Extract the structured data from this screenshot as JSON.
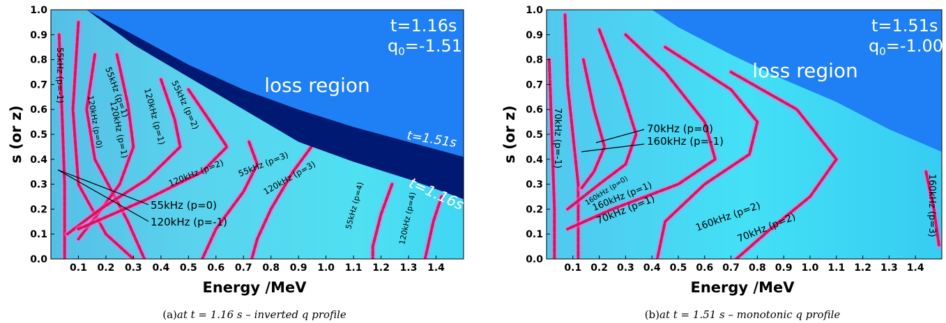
{
  "chart_data": [
    {
      "type": "heatmap",
      "panel_label": "(a)",
      "caption": "at t = 1.16 s – inverted q profile",
      "xlabel": "Energy   /MeV",
      "ylabel": "s (or z)",
      "xlim": [
        0,
        1.5
      ],
      "ylim": [
        0,
        1.0
      ],
      "xticks": [
        "0.1",
        "0.2",
        "0.3",
        "0.4",
        "0.5",
        "0.6",
        "0.7",
        "0.8",
        "0.9",
        "1.0",
        "1.1",
        "1.2",
        "1.3",
        "1.4"
      ],
      "yticks": [
        "0.0",
        "0.1",
        "0.2",
        "0.3",
        "0.4",
        "0.5",
        "0.6",
        "0.7",
        "0.8",
        "0.9",
        "1.0"
      ],
      "time_label": "t=1.16s",
      "q0_label": "q",
      "q0_sub": "0",
      "q0_value": "=-1.51",
      "region_label": "loss region",
      "boundary_labels": [
        "t=1.51s",
        "t=1.16s"
      ],
      "boundary_t151": [
        [
          0.13,
          1.0
        ],
        [
          0.3,
          0.9
        ],
        [
          0.5,
          0.78
        ],
        [
          0.7,
          0.68
        ],
        [
          0.9,
          0.6
        ],
        [
          1.1,
          0.53
        ],
        [
          1.3,
          0.47
        ],
        [
          1.5,
          0.41
        ]
      ],
      "boundary_t116": [
        [
          0.13,
          1.0
        ],
        [
          0.3,
          0.86
        ],
        [
          0.5,
          0.73
        ],
        [
          0.7,
          0.6
        ],
        [
          0.9,
          0.47
        ],
        [
          1.1,
          0.39
        ],
        [
          1.3,
          0.32
        ],
        [
          1.5,
          0.24
        ]
      ],
      "resonance_labels": [
        "55kHz (p=-1)",
        "55kHz (p=1)",
        "120kHz (p=0)",
        "120kHz (p=1)",
        "55kHz (p=2)",
        "120kHz (p=1)",
        "120kHz (p=2)",
        "55kHz (p=3)",
        "120kHz (p=3)",
        "55kHz (p=4)",
        "120kHz (p=4)",
        "55kHz (p=0)",
        "120kHz (p=-1)"
      ],
      "resonances": [
        {
          "points": [
            [
              0.03,
              0.9
            ],
            [
              0.04,
              0.6
            ],
            [
              0.05,
              0.3
            ],
            [
              0.05,
              0.0
            ]
          ]
        },
        {
          "points": [
            [
              0.1,
              0.95
            ],
            [
              0.08,
              0.6
            ],
            [
              0.1,
              0.3
            ],
            [
              0.2,
              0.1
            ],
            [
              0.3,
              0.0
            ]
          ]
        },
        {
          "points": [
            [
              0.16,
              0.82
            ],
            [
              0.13,
              0.6
            ],
            [
              0.16,
              0.4
            ],
            [
              0.28,
              0.15
            ],
            [
              0.34,
              0.0
            ]
          ]
        },
        {
          "points": [
            [
              0.24,
              0.82
            ],
            [
              0.28,
              0.62
            ],
            [
              0.3,
              0.45
            ],
            [
              0.25,
              0.3
            ],
            [
              0.17,
              0.18
            ],
            [
              0.1,
              0.08
            ]
          ]
        },
        {
          "points": [
            [
              0.4,
              0.72
            ],
            [
              0.45,
              0.56
            ],
            [
              0.47,
              0.45
            ],
            [
              0.35,
              0.32
            ],
            [
              0.18,
              0.2
            ],
            [
              0.06,
              0.1
            ]
          ]
        },
        {
          "points": [
            [
              0.5,
              0.68
            ],
            [
              0.58,
              0.55
            ],
            [
              0.64,
              0.45
            ],
            [
              0.55,
              0.35
            ],
            [
              0.35,
              0.24
            ],
            [
              0.1,
              0.12
            ]
          ]
        },
        {
          "points": [
            [
              0.72,
              0.47
            ],
            [
              0.75,
              0.38
            ],
            [
              0.7,
              0.27
            ],
            [
              0.6,
              0.12
            ],
            [
              0.55,
              0.0
            ]
          ]
        },
        {
          "points": [
            [
              0.96,
              0.47
            ],
            [
              0.88,
              0.35
            ],
            [
              0.8,
              0.2
            ],
            [
              0.75,
              0.08
            ],
            [
              0.73,
              0.0
            ]
          ]
        },
        {
          "points": [
            [
              1.24,
              0.3
            ],
            [
              1.2,
              0.18
            ],
            [
              1.17,
              0.05
            ],
            [
              1.17,
              0.0
            ]
          ]
        },
        {
          "points": [
            [
              1.42,
              0.25
            ],
            [
              1.39,
              0.15
            ],
            [
              1.37,
              0.05
            ],
            [
              1.36,
              0.0
            ]
          ]
        }
      ]
    },
    {
      "type": "heatmap",
      "panel_label": "(b)",
      "caption": "at t = 1.51 s – monotonic q profile",
      "xlabel": "Energy   /MeV",
      "ylabel": "s (or z)",
      "xlim": [
        0,
        1.5
      ],
      "ylim": [
        0,
        1.0
      ],
      "xticks": [
        "0.1",
        "0.2",
        "0.3",
        "0.4",
        "0.5",
        "0.6",
        "0.7",
        "0.8",
        "0.9",
        "1.0",
        "1.1",
        "1.2",
        "1.3",
        "1.4"
      ],
      "yticks": [
        "0.0",
        "0.1",
        "0.2",
        "0.3",
        "0.4",
        "0.5",
        "0.6",
        "0.7",
        "0.8",
        "0.9",
        "1.0"
      ],
      "time_label": "t=1.51s",
      "q0_label": "q",
      "q0_sub": "0",
      "q0_value": "=-1.00",
      "region_label": "loss region",
      "boundary": [
        [
          0.4,
          1.0
        ],
        [
          0.5,
          0.93
        ],
        [
          0.7,
          0.82
        ],
        [
          0.9,
          0.72
        ],
        [
          1.1,
          0.63
        ],
        [
          1.3,
          0.52
        ],
        [
          1.5,
          0.43
        ]
      ],
      "resonance_labels": [
        "70kHz (p=-1)",
        "70kHz (p=0)",
        "160kHz (p=-1)",
        "160kHz (p=0)",
        "160kHz (p=1)",
        "70kHz (p=1)",
        "160kHz (p=2)",
        "70kHz (p=2)",
        "160kHz (p=3)"
      ],
      "resonances": [
        {
          "points": [
            [
              0.01,
              0.8
            ],
            [
              0.02,
              0.5
            ],
            [
              0.03,
              0.2
            ],
            [
              0.03,
              0.0
            ]
          ]
        },
        {
          "points": [
            [
              0.07,
              0.98
            ],
            [
              0.08,
              0.7
            ],
            [
              0.1,
              0.5
            ],
            [
              0.12,
              0.3
            ],
            [
              0.12,
              0.0
            ]
          ]
        },
        {
          "points": [
            [
              0.14,
              0.8
            ],
            [
              0.18,
              0.6
            ],
            [
              0.22,
              0.45
            ],
            [
              0.18,
              0.35
            ],
            [
              0.13,
              0.28
            ]
          ]
        },
        {
          "points": [
            [
              0.2,
              0.92
            ],
            [
              0.28,
              0.7
            ],
            [
              0.34,
              0.5
            ],
            [
              0.3,
              0.38
            ],
            [
              0.2,
              0.3
            ],
            [
              0.08,
              0.2
            ]
          ]
        },
        {
          "points": [
            [
              0.3,
              0.9
            ],
            [
              0.45,
              0.75
            ],
            [
              0.6,
              0.55
            ],
            [
              0.64,
              0.4
            ],
            [
              0.5,
              0.3
            ],
            [
              0.25,
              0.2
            ],
            [
              0.08,
              0.12
            ]
          ]
        },
        {
          "points": [
            [
              0.45,
              0.85
            ],
            [
              0.7,
              0.68
            ],
            [
              0.8,
              0.55
            ],
            [
              0.77,
              0.42
            ],
            [
              0.6,
              0.3
            ],
            [
              0.45,
              0.15
            ],
            [
              0.42,
              0.0
            ]
          ]
        },
        {
          "points": [
            [
              0.7,
              0.75
            ],
            [
              0.95,
              0.6
            ],
            [
              1.1,
              0.4
            ],
            [
              1.0,
              0.25
            ],
            [
              0.85,
              0.12
            ],
            [
              0.72,
              0.0
            ]
          ]
        },
        {
          "points": [
            [
              1.44,
              0.35
            ],
            [
              1.47,
              0.2
            ],
            [
              1.49,
              0.05
            ]
          ]
        }
      ]
    }
  ]
}
